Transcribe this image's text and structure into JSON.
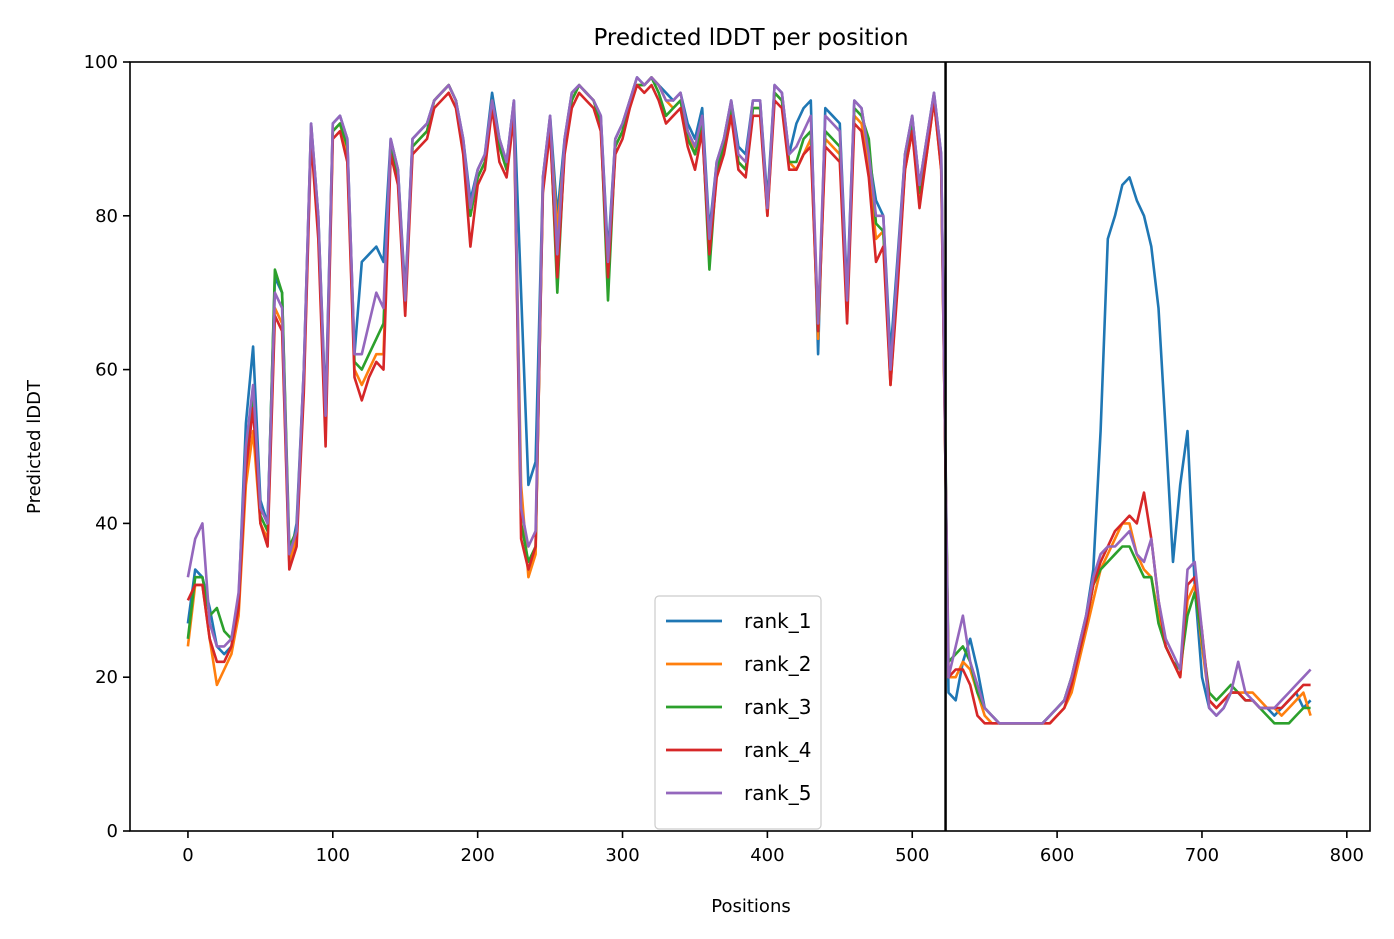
{
  "chart_data": {
    "type": "line",
    "title": "Predicted lDDT per position",
    "xlabel": "Positions",
    "ylabel": "Predicted lDDT",
    "xlim": [
      -40,
      816
    ],
    "ylim": [
      0,
      100
    ],
    "xticks": [
      0,
      100,
      200,
      300,
      400,
      500,
      600,
      700,
      800
    ],
    "yticks": [
      0,
      20,
      40,
      60,
      80,
      100
    ],
    "grid": false,
    "legend_position": "bottom-center",
    "vline": 523,
    "x": [
      0,
      5,
      10,
      15,
      20,
      25,
      30,
      35,
      40,
      45,
      50,
      55,
      60,
      65,
      70,
      75,
      80,
      85,
      90,
      95,
      100,
      105,
      110,
      115,
      120,
      125,
      130,
      135,
      140,
      145,
      150,
      155,
      160,
      165,
      170,
      175,
      180,
      185,
      190,
      195,
      200,
      205,
      210,
      215,
      220,
      225,
      230,
      235,
      240,
      245,
      250,
      255,
      260,
      265,
      270,
      275,
      280,
      285,
      290,
      295,
      300,
      305,
      310,
      315,
      320,
      325,
      330,
      335,
      340,
      345,
      350,
      355,
      360,
      365,
      370,
      375,
      380,
      385,
      390,
      395,
      400,
      405,
      410,
      415,
      420,
      425,
      430,
      435,
      440,
      445,
      450,
      455,
      460,
      465,
      470,
      475,
      480,
      485,
      490,
      495,
      500,
      505,
      510,
      515,
      520,
      525,
      530,
      535,
      540,
      545,
      550,
      555,
      560,
      565,
      570,
      575,
      580,
      585,
      590,
      595,
      600,
      605,
      610,
      615,
      620,
      625,
      630,
      635,
      640,
      645,
      650,
      655,
      660,
      665,
      670,
      675,
      680,
      685,
      690,
      695,
      700,
      705,
      710,
      715,
      720,
      725,
      730,
      735,
      740,
      745,
      750,
      755,
      760,
      765,
      770,
      775
    ],
    "series": [
      {
        "name": "rank_1",
        "color": "#1f77b4",
        "values": [
          27,
          34,
          33,
          29,
          24,
          23,
          24,
          30,
          53,
          63,
          43,
          40,
          72,
          70,
          35,
          40,
          60,
          92,
          80,
          55,
          92,
          93,
          90,
          62,
          74,
          75,
          76,
          74,
          90,
          86,
          70,
          90,
          91,
          92,
          95,
          96,
          97,
          95,
          90,
          82,
          86,
          88,
          96,
          90,
          87,
          95,
          70,
          45,
          48,
          85,
          93,
          80,
          90,
          96,
          97,
          96,
          95,
          93,
          75,
          90,
          92,
          95,
          98,
          97,
          98,
          97,
          96,
          95,
          96,
          92,
          90,
          94,
          78,
          87,
          90,
          95,
          89,
          88,
          95,
          95,
          82,
          97,
          96,
          88,
          92,
          94,
          95,
          62,
          94,
          93,
          92,
          70,
          95,
          94,
          88,
          82,
          80,
          62,
          75,
          88,
          93,
          84,
          90,
          96,
          88,
          18,
          17,
          22,
          25,
          21,
          16,
          15,
          14,
          14,
          14,
          14,
          14,
          14,
          14,
          15,
          16,
          17,
          20,
          24,
          28,
          34,
          52,
          77,
          80,
          84,
          85,
          82,
          80,
          76,
          68,
          52,
          35,
          45,
          52,
          32,
          20,
          16,
          15,
          16,
          18,
          18,
          17,
          17,
          16,
          16,
          15,
          16,
          17,
          18,
          16,
          17
        ]
      },
      {
        "name": "rank_2",
        "color": "#ff7f0e",
        "values": [
          24,
          32,
          32,
          25,
          19,
          21,
          23,
          28,
          45,
          52,
          40,
          38,
          68,
          66,
          35,
          38,
          58,
          91,
          78,
          52,
          91,
          92,
          88,
          60,
          58,
          60,
          62,
          62,
          89,
          85,
          68,
          89,
          90,
          91,
          95,
          96,
          97,
          95,
          89,
          80,
          85,
          87,
          95,
          89,
          86,
          94,
          45,
          33,
          36,
          84,
          92,
          78,
          89,
          95,
          97,
          96,
          95,
          92,
          73,
          89,
          91,
          95,
          97,
          97,
          98,
          97,
          95,
          94,
          95,
          91,
          88,
          92,
          76,
          86,
          89,
          94,
          87,
          86,
          94,
          94,
          80,
          96,
          95,
          87,
          86,
          88,
          90,
          64,
          90,
          89,
          88,
          68,
          93,
          92,
          86,
          77,
          78,
          58,
          72,
          86,
          91,
          82,
          88,
          95,
          86,
          20,
          20,
          22,
          21,
          18,
          15,
          14,
          14,
          14,
          14,
          14,
          14,
          14,
          14,
          14,
          15,
          16,
          18,
          22,
          26,
          30,
          34,
          36,
          38,
          40,
          40,
          36,
          34,
          33,
          28,
          24,
          22,
          20,
          30,
          32,
          24,
          17,
          16,
          17,
          18,
          18,
          18,
          18,
          17,
          16,
          16,
          15,
          16,
          17,
          18,
          15
        ]
      },
      {
        "name": "rank_3",
        "color": "#2ca02c",
        "values": [
          25,
          33,
          33,
          28,
          29,
          26,
          25,
          30,
          48,
          56,
          41,
          39,
          73,
          70,
          37,
          39,
          59,
          91,
          79,
          53,
          91,
          92,
          89,
          61,
          60,
          62,
          64,
          66,
          89,
          85,
          69,
          89,
          90,
          91,
          95,
          96,
          97,
          95,
          89,
          80,
          85,
          87,
          95,
          89,
          86,
          94,
          40,
          35,
          37,
          84,
          92,
          70,
          89,
          95,
          97,
          96,
          95,
          92,
          69,
          89,
          91,
          95,
          97,
          97,
          98,
          96,
          93,
          94,
          95,
          90,
          88,
          92,
          73,
          86,
          89,
          94,
          87,
          86,
          94,
          94,
          81,
          96,
          95,
          87,
          87,
          90,
          91,
          65,
          91,
          90,
          89,
          67,
          94,
          93,
          90,
          79,
          78,
          60,
          73,
          87,
          92,
          83,
          89,
          95,
          87,
          22,
          23,
          24,
          22,
          18,
          16,
          15,
          14,
          14,
          14,
          14,
          14,
          14,
          14,
          15,
          16,
          17,
          20,
          23,
          27,
          32,
          34,
          35,
          36,
          37,
          37,
          35,
          33,
          33,
          27,
          24,
          22,
          21,
          28,
          31,
          25,
          18,
          17,
          18,
          19,
          18,
          17,
          17,
          16,
          15,
          14,
          14,
          14,
          15,
          16,
          16
        ]
      },
      {
        "name": "rank_4",
        "color": "#d62728",
        "values": [
          30,
          32,
          32,
          25,
          22,
          22,
          24,
          29,
          47,
          55,
          40,
          37,
          67,
          65,
          34,
          37,
          57,
          90,
          77,
          50,
          90,
          91,
          87,
          59,
          56,
          59,
          61,
          60,
          88,
          84,
          67,
          88,
          89,
          90,
          94,
          95,
          96,
          94,
          88,
          76,
          84,
          86,
          94,
          87,
          85,
          93,
          38,
          34,
          37,
          83,
          91,
          72,
          88,
          94,
          96,
          95,
          94,
          91,
          72,
          88,
          90,
          94,
          97,
          96,
          97,
          95,
          92,
          93,
          94,
          89,
          86,
          91,
          75,
          85,
          88,
          93,
          86,
          85,
          93,
          93,
          80,
          95,
          94,
          86,
          86,
          88,
          89,
          65,
          89,
          88,
          87,
          66,
          92,
          91,
          85,
          74,
          76,
          58,
          71,
          86,
          91,
          81,
          88,
          95,
          86,
          20,
          21,
          21,
          19,
          15,
          14,
          14,
          14,
          14,
          14,
          14,
          14,
          14,
          14,
          14,
          15,
          16,
          19,
          23,
          27,
          32,
          35,
          37,
          39,
          40,
          41,
          40,
          44,
          38,
          30,
          24,
          22,
          20,
          32,
          33,
          26,
          17,
          16,
          17,
          18,
          18,
          17,
          17,
          16,
          16,
          16,
          16,
          17,
          18,
          19,
          19
        ]
      },
      {
        "name": "rank_5",
        "color": "#9467bd",
        "values": [
          33,
          38,
          40,
          27,
          24,
          24,
          25,
          31,
          50,
          58,
          42,
          40,
          70,
          68,
          36,
          39,
          60,
          92,
          80,
          54,
          92,
          93,
          90,
          62,
          62,
          66,
          70,
          68,
          90,
          86,
          69,
          90,
          91,
          92,
          95,
          96,
          97,
          95,
          90,
          81,
          86,
          88,
          95,
          90,
          87,
          95,
          42,
          37,
          39,
          85,
          93,
          75,
          90,
          96,
          97,
          96,
          95,
          93,
          74,
          90,
          92,
          95,
          98,
          97,
          98,
          97,
          95,
          95,
          96,
          91,
          89,
          93,
          77,
          87,
          90,
          95,
          88,
          87,
          95,
          95,
          81,
          97,
          96,
          88,
          89,
          91,
          93,
          66,
          93,
          92,
          91,
          69,
          95,
          94,
          88,
          80,
          80,
          60,
          74,
          88,
          93,
          84,
          90,
          96,
          88,
          20,
          24,
          28,
          22,
          19,
          16,
          15,
          14,
          14,
          14,
          14,
          14,
          14,
          14,
          15,
          16,
          17,
          20,
          24,
          28,
          33,
          36,
          37,
          37,
          38,
          39,
          36,
          35,
          38,
          30,
          25,
          23,
          21,
          34,
          35,
          26,
          16,
          15,
          16,
          18,
          22,
          18,
          17,
          16,
          16,
          16,
          17,
          18,
          19,
          20,
          21
        ]
      }
    ]
  }
}
